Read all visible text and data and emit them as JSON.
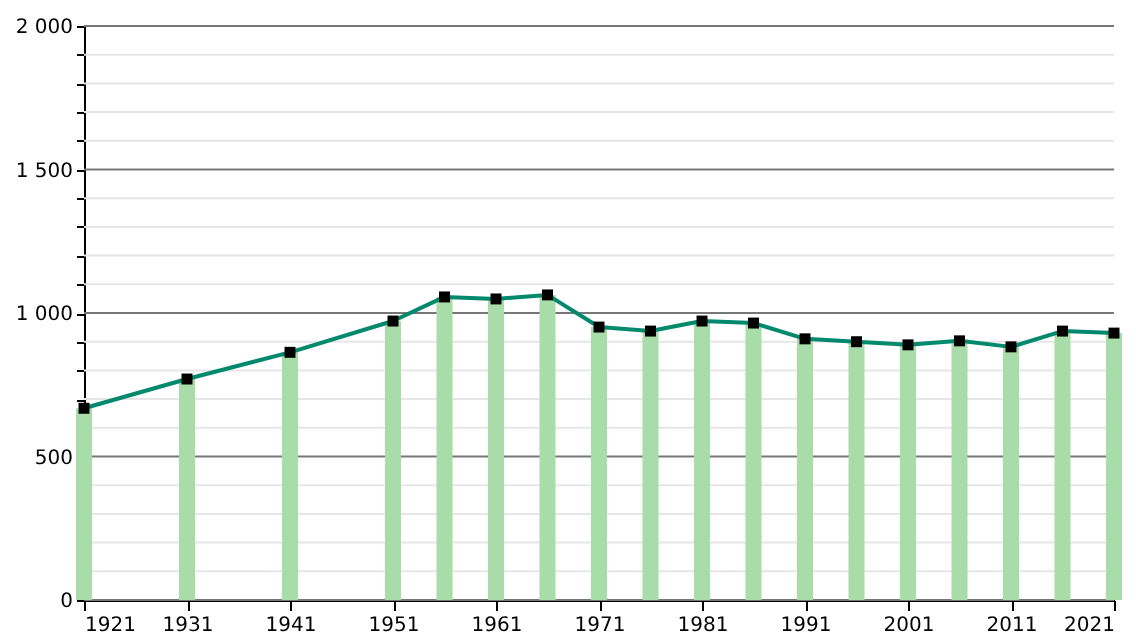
{
  "chart_data": {
    "type": "bar",
    "x": [
      1921,
      1931,
      1941,
      1951,
      1956,
      1961,
      1966,
      1971,
      1976,
      1981,
      1986,
      1991,
      1996,
      2001,
      2006,
      2011,
      2016,
      2021
    ],
    "series": [
      {
        "color": "#a8dca8",
        "values": [
          668,
          770,
          863,
          972,
          1056,
          1049,
          1063,
          951,
          937,
          972,
          965,
          910,
          900,
          889,
          903,
          882,
          937,
          930
        ]
      },
      {
        "type": "line",
        "color": "#00896c",
        "marker": "square",
        "line_style": "solid",
        "values": [
          668,
          770,
          863,
          972,
          1056,
          1049,
          1063,
          951,
          937,
          972,
          965,
          910,
          900,
          889,
          903,
          882,
          937,
          930
        ]
      }
    ],
    "xlim": [
      1921,
      2021
    ],
    "xticks": [
      1921,
      1931,
      1941,
      1951,
      1961,
      1971,
      1981,
      1991,
      2001,
      2011,
      2021
    ],
    "ylim": [
      0,
      2000
    ],
    "yticks": [
      0,
      {
        "value": 100,
        "label": null
      },
      {
        "value": 200,
        "label": null
      },
      {
        "value": 300,
        "label": null
      },
      {
        "value": 400,
        "label": null
      },
      500,
      {
        "value": 600,
        "label": null
      },
      {
        "value": 700,
        "label": null
      },
      {
        "value": 800,
        "label": null
      },
      {
        "value": 900,
        "label": null
      },
      {
        "value": 1000,
        "label": "1 000"
      },
      {
        "value": 1100,
        "label": null
      },
      {
        "value": 1200,
        "label": null
      },
      {
        "value": 1300,
        "label": null
      },
      {
        "value": 1400,
        "label": null
      },
      {
        "value": 1500,
        "label": "1 500"
      },
      {
        "value": 1600,
        "label": null
      },
      {
        "value": 1700,
        "label": null
      },
      {
        "value": 1800,
        "label": null
      },
      {
        "value": 1900,
        "label": null
      },
      {
        "value": 2000,
        "label": "2 000"
      }
    ],
    "grid": "y"
  }
}
